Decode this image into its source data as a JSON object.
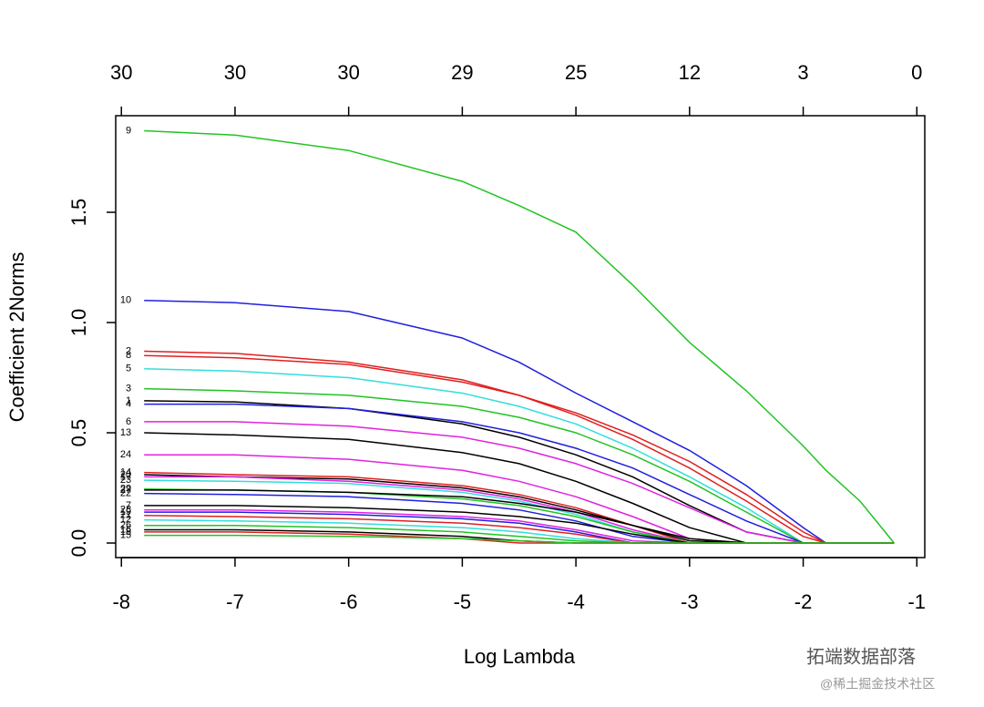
{
  "chart_data": {
    "type": "line",
    "xlabel": "Log Lambda",
    "ylabel": "Coefficient 2Norms",
    "xlim": [
      -8.05,
      -0.93
    ],
    "ylim": [
      -0.066,
      1.938
    ],
    "xticks": [
      -8,
      -7,
      -6,
      -5,
      -4,
      -3,
      -2,
      -1
    ],
    "x2ticks": [
      {
        "value": -8,
        "label": "30"
      },
      {
        "value": -7,
        "label": "30"
      },
      {
        "value": -6,
        "label": "30"
      },
      {
        "value": -5,
        "label": "29"
      },
      {
        "value": -4,
        "label": "25"
      },
      {
        "value": -3,
        "label": "12"
      },
      {
        "value": -2,
        "label": "3"
      },
      {
        "value": -1,
        "label": "0"
      }
    ],
    "yticks": [
      {
        "value": 0,
        "label": "0.0"
      },
      0.5,
      {
        "value": 1,
        "label": "1.0"
      },
      1.5
    ],
    "grid": false,
    "annotations": [
      "拓端数据部落",
      "@稀土掘金技术社区"
    ],
    "x": [
      -7.8,
      -7,
      -6,
      -5,
      -4.5,
      -4,
      -3.5,
      -3,
      -2.5,
      -2,
      -1.8,
      -1.5,
      -1.2
    ],
    "series": [
      {
        "name": "9",
        "color": "#22c322",
        "values": [
          1.87,
          1.85,
          1.78,
          1.64,
          1.53,
          1.41,
          1.17,
          0.91,
          0.69,
          0.44,
          0.33,
          0.19,
          0
        ]
      },
      {
        "name": "10",
        "color": "#1f1fe0",
        "values": [
          1.1,
          1.09,
          1.05,
          0.93,
          0.82,
          0.68,
          0.55,
          0.42,
          0.26,
          0.07,
          0,
          0,
          0
        ]
      },
      {
        "name": "2",
        "color": "#e01f1f",
        "values": [
          0.87,
          0.86,
          0.82,
          0.74,
          0.67,
          0.59,
          0.49,
          0.37,
          0.22,
          0.05,
          0,
          0,
          0
        ]
      },
      {
        "name": "8",
        "color": "#e01f1f",
        "values": [
          0.85,
          0.84,
          0.81,
          0.73,
          0.67,
          0.58,
          0.47,
          0.34,
          0.19,
          0.03,
          0,
          0,
          0
        ]
      },
      {
        "name": "5",
        "color": "#33dddd",
        "values": [
          0.79,
          0.78,
          0.75,
          0.68,
          0.62,
          0.54,
          0.43,
          0.3,
          0.16,
          0,
          0,
          0,
          0
        ]
      },
      {
        "name": "3",
        "color": "#22c322",
        "values": [
          0.7,
          0.69,
          0.67,
          0.62,
          0.57,
          0.5,
          0.4,
          0.28,
          0.14,
          0,
          0,
          0,
          0
        ]
      },
      {
        "name": "1",
        "color": "#000000",
        "values": [
          0.645,
          0.64,
          0.61,
          0.54,
          0.48,
          0.4,
          0.3,
          0.17,
          0.05,
          0,
          0,
          0,
          0
        ]
      },
      {
        "name": "4",
        "color": "#1f1fe0",
        "values": [
          0.63,
          0.63,
          0.61,
          0.55,
          0.5,
          0.43,
          0.34,
          0.22,
          0.1,
          0,
          0,
          0,
          0
        ]
      },
      {
        "name": "6",
        "color": "#e022e0",
        "values": [
          0.55,
          0.55,
          0.53,
          0.48,
          0.43,
          0.36,
          0.27,
          0.16,
          0.05,
          0,
          0,
          0,
          0
        ]
      },
      {
        "name": "13",
        "color": "#000000",
        "values": [
          0.5,
          0.49,
          0.47,
          0.41,
          0.36,
          0.28,
          0.18,
          0.07,
          0,
          0,
          0,
          0,
          0
        ]
      },
      {
        "name": "24",
        "color": "#e022e0",
        "values": [
          0.4,
          0.4,
          0.38,
          0.33,
          0.28,
          0.21,
          0.12,
          0.02,
          0,
          0,
          0,
          0,
          0
        ]
      },
      {
        "name": "14",
        "color": "#e01f1f",
        "values": [
          0.32,
          0.31,
          0.3,
          0.26,
          0.22,
          0.16,
          0.08,
          0,
          0,
          0,
          0,
          0,
          0
        ]
      },
      {
        "name": "20",
        "color": "#000000",
        "values": [
          0.31,
          0.3,
          0.29,
          0.25,
          0.21,
          0.15,
          0.08,
          0.01,
          0,
          0,
          0,
          0,
          0
        ]
      },
      {
        "name": "17",
        "color": "#e022e0",
        "values": [
          0.3,
          0.3,
          0.28,
          0.24,
          0.2,
          0.14,
          0.06,
          0,
          0,
          0,
          0,
          0,
          0
        ]
      },
      {
        "name": "23",
        "color": "#33dddd",
        "values": [
          0.285,
          0.28,
          0.27,
          0.23,
          0.19,
          0.13,
          0.05,
          0,
          0,
          0,
          0,
          0,
          0
        ]
      },
      {
        "name": "29",
        "color": "#22c322",
        "values": [
          0.245,
          0.24,
          0.23,
          0.2,
          0.17,
          0.12,
          0.05,
          0,
          0,
          0,
          0,
          0,
          0
        ]
      },
      {
        "name": "27",
        "color": "#000000",
        "values": [
          0.24,
          0.24,
          0.23,
          0.21,
          0.18,
          0.14,
          0.08,
          0.02,
          0,
          0,
          0,
          0,
          0
        ]
      },
      {
        "name": "22",
        "color": "#1f1fe0",
        "values": [
          0.225,
          0.22,
          0.21,
          0.18,
          0.15,
          0.1,
          0.03,
          0,
          0,
          0,
          0,
          0,
          0
        ]
      },
      {
        "name": "7",
        "color": "#000000",
        "values": [
          0.17,
          0.17,
          0.16,
          0.14,
          0.12,
          0.09,
          0.04,
          0,
          0,
          0,
          0,
          0,
          0
        ]
      },
      {
        "name": "28",
        "color": "#e022e0",
        "values": [
          0.15,
          0.15,
          0.14,
          0.12,
          0.1,
          0.06,
          0.01,
          0,
          0,
          0,
          0,
          0,
          0
        ]
      },
      {
        "name": "19",
        "color": "#1f1fe0",
        "values": [
          0.14,
          0.14,
          0.13,
          0.11,
          0.09,
          0.05,
          0,
          0,
          0,
          0,
          0,
          0,
          0
        ]
      },
      {
        "name": "21",
        "color": "#e01f1f",
        "values": [
          0.125,
          0.12,
          0.11,
          0.09,
          0.07,
          0.04,
          0,
          0,
          0,
          0,
          0,
          0,
          0
        ]
      },
      {
        "name": "12",
        "color": "#33dddd",
        "values": [
          0.105,
          0.1,
          0.09,
          0.07,
          0.05,
          0.02,
          0,
          0,
          0,
          0,
          0,
          0,
          0
        ]
      },
      {
        "name": "26",
        "color": "#22c322",
        "values": [
          0.08,
          0.08,
          0.07,
          0.05,
          0.03,
          0.01,
          0,
          0,
          0,
          0,
          0,
          0,
          0
        ]
      },
      {
        "name": "16",
        "color": "#000000",
        "values": [
          0.06,
          0.06,
          0.05,
          0.03,
          0.01,
          0,
          0,
          0,
          0,
          0,
          0,
          0,
          0
        ]
      },
      {
        "name": "18",
        "color": "#e01f1f",
        "values": [
          0.05,
          0.05,
          0.04,
          0.02,
          0,
          0,
          0,
          0,
          0,
          0,
          0,
          0,
          0
        ]
      },
      {
        "name": "15",
        "color": "#22c322",
        "values": [
          0.035,
          0.035,
          0.03,
          0.02,
          0.01,
          0,
          0,
          0,
          0,
          0,
          0,
          0,
          0
        ]
      }
    ]
  }
}
